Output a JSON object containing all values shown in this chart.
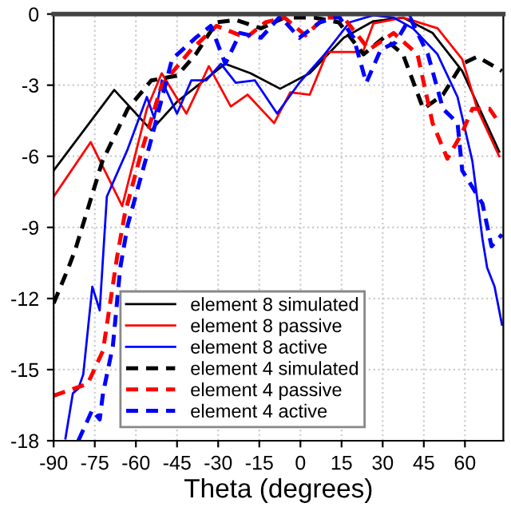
{
  "chart_data": {
    "type": "line",
    "xlabel": "Theta (degrees)",
    "xlim": [
      -90,
      74
    ],
    "xticks": [
      -90,
      -75,
      -60,
      -45,
      -30,
      -15,
      0,
      15,
      30,
      45,
      60
    ],
    "ylim": [
      -18,
      0
    ],
    "yticks": [
      0,
      -3,
      -6,
      -9,
      -12,
      -15,
      -18
    ],
    "grid": true,
    "legend": "bottom",
    "series": [
      {
        "name": "element 8 simulated",
        "color": "#000000",
        "line_style": "solid",
        "x": [
          -90,
          -67.9,
          -54.4,
          -45,
          -27.4,
          -18.2,
          -7.4,
          3.4,
          15.8,
          26.6,
          37.4,
          48.2,
          59,
          72.5
        ],
        "values": [
          -6.6,
          -3.2,
          -4.9,
          -3.7,
          -2.1,
          -2.5,
          -3.15,
          -2.5,
          -1.0,
          -0.3,
          -0.15,
          -0.8,
          -2.4,
          -5.8
        ]
      },
      {
        "name": "element 8 passive",
        "color": "#ff0000",
        "line_style": "solid",
        "x": [
          -90,
          -76.5,
          -65,
          -56,
          -50.6,
          -41.6,
          -33.4,
          -25.4,
          -19.3,
          -9.6,
          -3.7,
          3.4,
          9.8,
          22.8,
          26.6,
          37.4,
          50,
          59,
          64.5,
          72.5
        ],
        "values": [
          -7.7,
          -5.4,
          -8.1,
          -4.0,
          -2.5,
          -4.2,
          -2.2,
          -3.9,
          -3.4,
          -4.6,
          -3.3,
          -3.4,
          -1.6,
          -1.6,
          -0.4,
          -0.15,
          -0.6,
          -1.9,
          -4.0,
          -6.0
        ]
      },
      {
        "name": "element 8 active",
        "color": "#0000ff",
        "line_style": "solid",
        "x": [
          -85.7,
          -83,
          -81,
          -79.2,
          -75.9,
          -73.2,
          -70.6,
          -63,
          -56,
          -53.3,
          -50.6,
          -45,
          -39.8,
          -34.4,
          -29,
          -23.6,
          -16.6,
          -8.5,
          -0.4,
          8.8,
          17.9,
          26.6,
          34,
          41,
          50,
          57.3,
          62.7,
          66.4,
          68.1,
          70.8,
          73.5
        ],
        "values": [
          -17.9,
          -16.0,
          -15.8,
          -15.2,
          -11.5,
          -12.5,
          -7.7,
          -5.7,
          -3.5,
          -4.4,
          -2.8,
          -4.2,
          -2.8,
          -2.8,
          -2.1,
          -2.9,
          -2.8,
          -4.2,
          -2.9,
          -1.7,
          -0.35,
          -0.05,
          -0.15,
          -0.6,
          -1.7,
          -3.5,
          -6.2,
          -9.5,
          -10.7,
          -11.5,
          -13.1
        ]
      },
      {
        "name": "element 4 simulated",
        "color": "#000000",
        "line_style": "dashed",
        "x": [
          -90,
          -84.6,
          -82,
          -72.2,
          -63,
          -54.4,
          -45,
          -38.2,
          -30.6,
          -23.6,
          -14.4,
          -5.8,
          5,
          14,
          23,
          30.3,
          37.4,
          44.8,
          52,
          59,
          64.5,
          73.5
        ],
        "values": [
          -12.2,
          -10.7,
          -9.9,
          -6.2,
          -4.0,
          -2.8,
          -2.6,
          -1.7,
          -0.35,
          -0.25,
          -0.6,
          -0.15,
          -0.15,
          -0.35,
          -1.7,
          -1.0,
          -1.7,
          -4.0,
          -3.4,
          -2.1,
          -1.8,
          -2.4
        ]
      },
      {
        "name": "element 4 passive",
        "color": "#ff0000",
        "line_style": "dashed",
        "x": [
          -90,
          -77.6,
          -72,
          -66.8,
          -64,
          -57.7,
          -50.6,
          -39.8,
          -30.6,
          -19.8,
          -12.8,
          -5.8,
          1.8,
          8.8,
          15.8,
          25,
          34,
          42.7,
          48.2,
          53.6,
          59,
          62.7,
          69,
          72.5
        ],
        "values": [
          -16.1,
          -15.6,
          -14.2,
          -10.2,
          -8.4,
          -5.7,
          -3.0,
          -1.5,
          -0.5,
          -1.0,
          -0.35,
          -0.15,
          -0.9,
          -0.15,
          -0.15,
          -1.5,
          -0.8,
          -1.7,
          -4.6,
          -6.1,
          -5.0,
          -4.0,
          -4.0,
          -4.6
        ]
      },
      {
        "name": "element 4 active",
        "color": "#0000ff",
        "line_style": "dashed",
        "x": [
          -81,
          -75.9,
          -73.2,
          -72,
          -68.4,
          -65.7,
          -63,
          -54.9,
          -46.8,
          -38.2,
          -32.7,
          -27.4,
          -22,
          -14.4,
          -7.4,
          -0.4,
          7.1,
          14,
          19.4,
          24,
          29.3,
          34.7,
          40,
          46.5,
          52,
          57.3,
          59,
          66.4,
          69.7,
          73.5
        ],
        "values": [
          -18.0,
          -16.7,
          -17.1,
          -16.0,
          -14.0,
          -10.7,
          -8.9,
          -5.5,
          -1.9,
          -1.0,
          -0.5,
          -2.1,
          -0.8,
          -1.0,
          -0.1,
          -1.0,
          -0.35,
          -0.1,
          -1.0,
          -2.9,
          -1.5,
          -1.2,
          -0.15,
          -1.7,
          -4.0,
          -4.6,
          -6.6,
          -8.0,
          -9.8,
          -9.3
        ]
      }
    ]
  }
}
